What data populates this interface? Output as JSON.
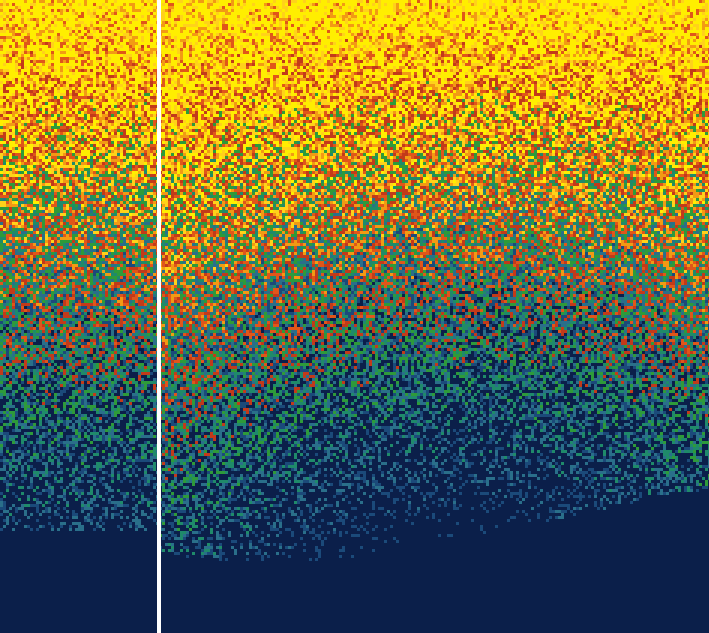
{
  "view": {
    "kind": "heatmap",
    "has_divider": true
  },
  "colors": {
    "divider": "#ffffff",
    "palette": [
      "#0b1f4a",
      "#1b4a7a",
      "#2a6f8a",
      "#1f8a6a",
      "#2e9a3a",
      "#c23a1a",
      "#e0561a",
      "#f29a14",
      "#ffd21a",
      "#ffee00"
    ]
  },
  "chart_data": {
    "type": "heatmap",
    "title": "",
    "xlabel": "",
    "ylabel": "",
    "panels": [
      {
        "name": "",
        "description_of_pattern": ""
      },
      {
        "name": "",
        "description_of_pattern": ""
      }
    ]
  }
}
